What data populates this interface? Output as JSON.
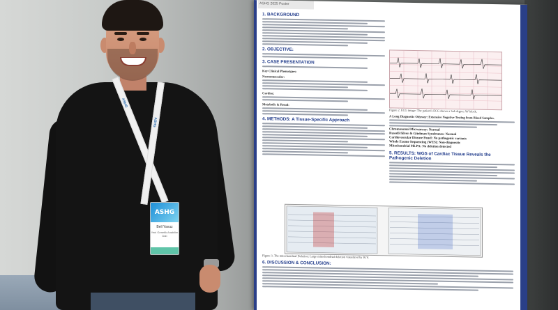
{
  "poster": {
    "header": "ASHG 2025 Poster",
    "sections": {
      "background": "1. BACKGROUND",
      "objective": "2. OBJECTIVE:",
      "case": "3. CASE PRESENTATION",
      "methods": "4. METHODS: A Tissue-Specific Approach",
      "discussion": "6. DISCUSSION & CONCLUSION:",
      "results": "5. RESULTS: WGS of Cardiac Tissue Reveals the Pathogenic Deletion"
    },
    "key_features": "Key Clinical Phenotypes:",
    "neuromuscular": "Neuromuscular:",
    "cardiac": "Cardiac:",
    "metabolic": "Metabolic & Renal:",
    "figure2_caption": "Figure 2. ECG image: The patient's ECG shows a 3rd-degree AV block.",
    "odyssey_title": "A Long Diagnostic Odyssey: Extensive Negative Testing from Blood Samples.",
    "tests": [
      "Chromosomal Microarray: Normal",
      "Russell-Silver & Gitelman Syndromes: Normal",
      "Cardiovascular Disease Panel: No pathogenic variants",
      "Whole Exome Sequencing (WES): Non-diagnostic",
      "Mitochondrial MLPA: No deletion detected"
    ],
    "figure3_caption": "Figure 3. The mitochondrial Deletion: Large mitochondrial deletion visualized by IGV."
  },
  "badge": {
    "logo": "ASHG",
    "name": "Bell Yavuz",
    "role": "Yeni Genetik Anabilim Dalı"
  },
  "lanyard": "ASHG"
}
